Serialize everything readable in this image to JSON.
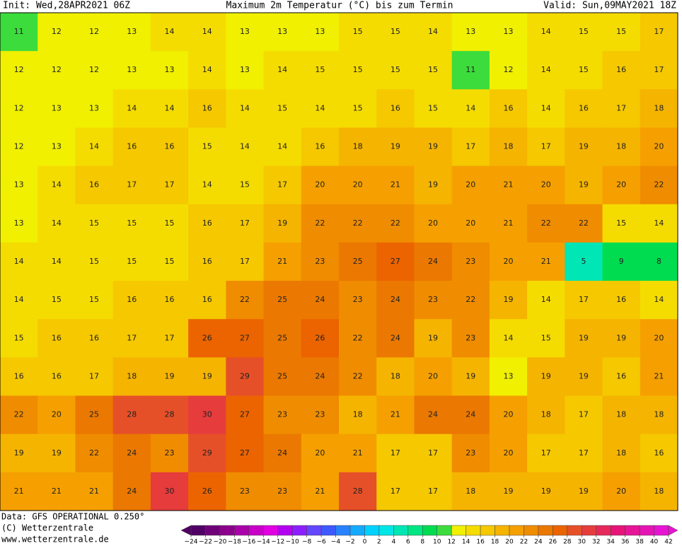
{
  "header": {
    "init": "Init: Wed,28APR2021 06Z",
    "title": "Maximum 2m Temperatur (°C) bis zum Termin",
    "valid": "Valid: Sun,09MAY2021 18Z"
  },
  "map": {
    "rows": [
      [
        11,
        12,
        12,
        13,
        14,
        14,
        13,
        13,
        13,
        15,
        15,
        14,
        13,
        13,
        14,
        15,
        15,
        17
      ],
      [
        12,
        12,
        12,
        13,
        13,
        14,
        13,
        14,
        15,
        15,
        15,
        15,
        11,
        12,
        14,
        15,
        16,
        17
      ],
      [
        12,
        13,
        13,
        14,
        14,
        16,
        14,
        15,
        14,
        15,
        16,
        15,
        14,
        16,
        14,
        16,
        17,
        18
      ],
      [
        12,
        13,
        14,
        16,
        16,
        15,
        14,
        14,
        16,
        18,
        19,
        19,
        17,
        18,
        17,
        19,
        18,
        20
      ],
      [
        13,
        14,
        16,
        17,
        17,
        14,
        15,
        17,
        20,
        20,
        21,
        19,
        20,
        21,
        20,
        19,
        20,
        22
      ],
      [
        13,
        14,
        15,
        15,
        15,
        16,
        17,
        19,
        22,
        22,
        22,
        20,
        20,
        21,
        22,
        22,
        15,
        14
      ],
      [
        14,
        14,
        15,
        15,
        15,
        16,
        17,
        21,
        23,
        25,
        27,
        24,
        23,
        20,
        21,
        5,
        9,
        8
      ],
      [
        14,
        15,
        15,
        16,
        16,
        16,
        22,
        25,
        24,
        23,
        24,
        23,
        22,
        19,
        14,
        17,
        16,
        14
      ],
      [
        15,
        16,
        16,
        17,
        17,
        26,
        27,
        25,
        26,
        22,
        24,
        19,
        23,
        14,
        15,
        19,
        19,
        20
      ],
      [
        16,
        16,
        17,
        18,
        19,
        19,
        29,
        25,
        24,
        22,
        18,
        20,
        19,
        13,
        19,
        19,
        16,
        21
      ],
      [
        22,
        20,
        25,
        28,
        28,
        30,
        27,
        23,
        23,
        18,
        21,
        24,
        24,
        20,
        18,
        17,
        18,
        18
      ],
      [
        19,
        19,
        22,
        24,
        23,
        29,
        27,
        24,
        20,
        21,
        17,
        17,
        23,
        20,
        17,
        17,
        18,
        16
      ],
      [
        21,
        21,
        21,
        24,
        30,
        26,
        23,
        23,
        21,
        28,
        17,
        17,
        18,
        19,
        19,
        19,
        20,
        18
      ]
    ]
  },
  "colorbar": {
    "ticks": [
      {
        "value": -24,
        "label": "−24"
      },
      {
        "value": -22,
        "label": "−22"
      },
      {
        "value": -20,
        "label": "−20"
      },
      {
        "value": -18,
        "label": "−18"
      },
      {
        "value": -16,
        "label": "−16"
      },
      {
        "value": -14,
        "label": "−14"
      },
      {
        "value": -12,
        "label": "−12"
      },
      {
        "value": -10,
        "label": "−10"
      },
      {
        "value": -8,
        "label": "−8"
      },
      {
        "value": -6,
        "label": "−6"
      },
      {
        "value": -4,
        "label": "−4"
      },
      {
        "value": -2,
        "label": "−2"
      },
      0,
      2,
      4,
      6,
      8,
      10,
      12,
      14,
      16,
      18,
      20,
      22,
      24,
      26,
      28,
      30,
      32,
      34,
      36,
      38,
      40,
      42
    ],
    "colors": [
      "#500064",
      "#6e0078",
      "#8c008c",
      "#aa00aa",
      "#c800c8",
      "#e100e1",
      "#b400f0",
      "#8c1eff",
      "#6446ff",
      "#3c5aff",
      "#2882ff",
      "#14aaff",
      "#00d2ff",
      "#00e6e6",
      "#00e6b4",
      "#00e682",
      "#00dc50",
      "#3cdc3c",
      "#f0f000",
      "#f5dc00",
      "#f5c800",
      "#f5b400",
      "#f5a000",
      "#f08c00",
      "#eb7800",
      "#eb6400",
      "#e65028",
      "#e63c3c",
      "#e6285a",
      "#e61478",
      "#e61496",
      "#e614b4",
      "#e614d2"
    ]
  },
  "footer": {
    "data": "Data: GFS OPERATIONAL 0.250°",
    "copyright": "(C) Wetterzentrale",
    "url": "www.wetterzentrale.de"
  }
}
